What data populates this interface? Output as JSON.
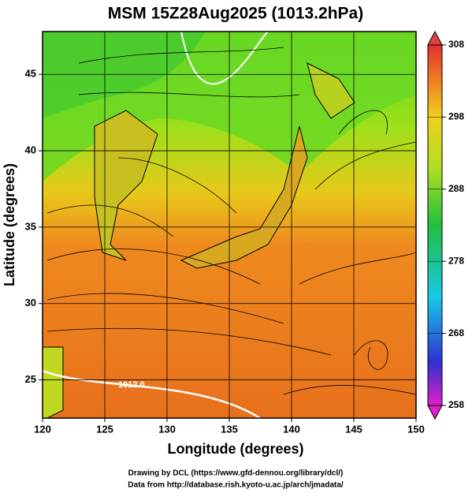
{
  "chart_data": {
    "type": "map",
    "title": "MSM 15Z28Aug2025 (1013.2hPa)",
    "xlabel": "Longitude (degrees)",
    "ylabel": "Latitude  (degrees)",
    "xlim": [
      120,
      150
    ],
    "xticks": [
      120,
      125,
      130,
      135,
      140,
      145,
      150
    ],
    "ylim": [
      22.5,
      47.8
    ],
    "yticks": [
      25,
      30,
      35,
      40,
      45
    ],
    "grid": true,
    "colorbar": {
      "lim": [
        258,
        308
      ],
      "ticks": [
        258,
        268,
        278,
        288,
        298,
        308
      ]
    },
    "annotations": [
      "1012.0"
    ],
    "footer": [
      "Drawing by DCL (https://www.gfd-dennou.org/library/dcl/)",
      "Data from http://database.rish.kyoto-u.ac.jp/arch/jmadata/"
    ]
  }
}
